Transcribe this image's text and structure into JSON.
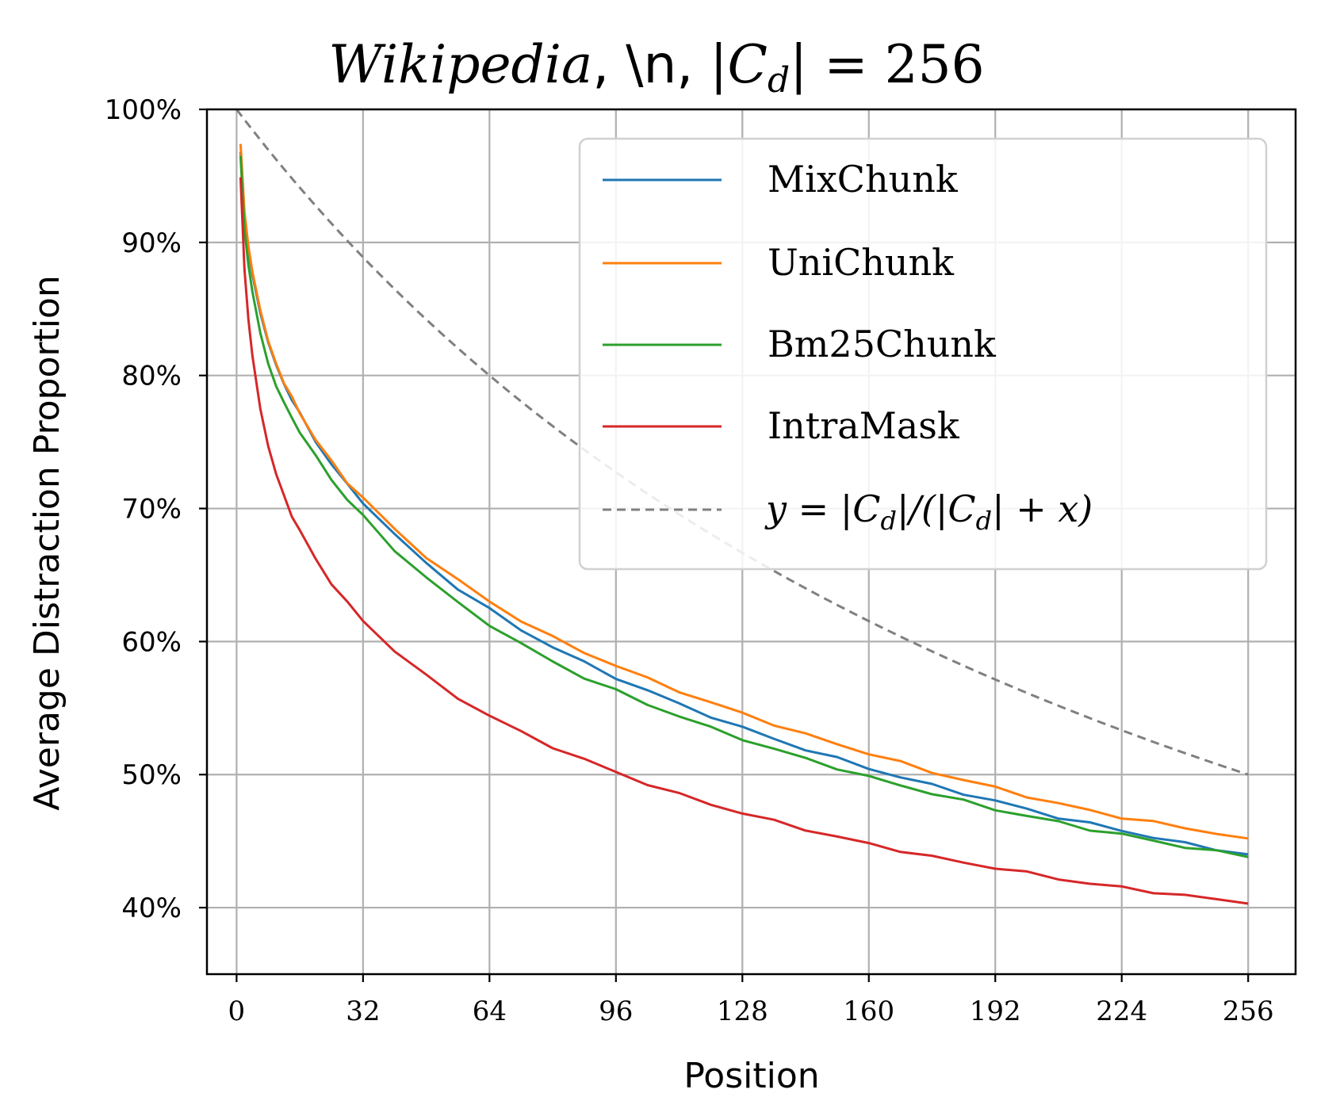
{
  "chart_data": {
    "type": "line",
    "title": "Wikipedia, \\n, |Cd| = 256",
    "title_parts": {
      "italic": "Wikipedia",
      "sep1": ", ",
      "literal": "\\n",
      "sep2": ", ",
      "math": "|C",
      "sub": "d",
      "math_end": "| = 256"
    },
    "xlabel": "Position",
    "ylabel": "Average Distraction Proportion",
    "xlim": [
      -7.5,
      268
    ],
    "ylim": [
      35,
      100
    ],
    "x_ticks": [
      0,
      32,
      64,
      96,
      128,
      160,
      192,
      224,
      256
    ],
    "x_tick_labels": [
      "0",
      "32",
      "64",
      "96",
      "128",
      "160",
      "192",
      "224",
      "256"
    ],
    "y_ticks": [
      40,
      50,
      60,
      70,
      80,
      90,
      100
    ],
    "y_tick_labels": [
      "40%",
      "50%",
      "60%",
      "70%",
      "80%",
      "90%",
      "100%"
    ],
    "grid": true,
    "legend_position": "top-right",
    "x": [
      1,
      2,
      3,
      4,
      6,
      8,
      10,
      12,
      14,
      16,
      20,
      24,
      28,
      32,
      40,
      48,
      56,
      64,
      72,
      80,
      88,
      96,
      104,
      112,
      120,
      128,
      136,
      144,
      152,
      160,
      168,
      176,
      184,
      192,
      200,
      208,
      216,
      224,
      232,
      240,
      248,
      256
    ],
    "series": [
      {
        "name": "MixChunk",
        "color": "#1f77b4",
        "style": "solid",
        "values": [
          96.8,
          92.0,
          89.5,
          87.6,
          84.7,
          82.5,
          80.8,
          79.4,
          78.2,
          77.1,
          75.1,
          73.3,
          71.8,
          70.5,
          68.0,
          65.9,
          64.0,
          62.4,
          60.9,
          59.6,
          58.4,
          57.3,
          56.3,
          55.3,
          54.4,
          53.5,
          52.7,
          51.9,
          51.2,
          50.5,
          49.8,
          49.2,
          48.6,
          48.0,
          47.4,
          46.8,
          46.3,
          45.8,
          45.3,
          44.8,
          44.4,
          44.0
        ]
      },
      {
        "name": "UniChunk",
        "color": "#ff7f0e",
        "style": "solid",
        "values": [
          97.4,
          92.3,
          89.7,
          87.8,
          84.9,
          82.6,
          80.9,
          79.5,
          78.3,
          77.2,
          75.2,
          73.5,
          72.0,
          70.8,
          68.4,
          66.4,
          64.6,
          63.0,
          61.6,
          60.3,
          59.2,
          58.2,
          57.2,
          56.3,
          55.4,
          54.6,
          53.8,
          53.0,
          52.3,
          51.6,
          50.9,
          50.2,
          49.6,
          49.0,
          48.4,
          47.8,
          47.3,
          46.8,
          46.4,
          46.0,
          45.6,
          45.2
        ]
      },
      {
        "name": "Bm25Chunk",
        "color": "#2ca02c",
        "style": "solid",
        "values": [
          96.5,
          91.0,
          88.3,
          86.3,
          83.2,
          80.9,
          79.2,
          77.9,
          76.8,
          75.8,
          73.9,
          72.2,
          70.7,
          69.4,
          66.9,
          64.8,
          62.9,
          61.3,
          59.8,
          58.5,
          57.3,
          56.3,
          55.3,
          54.4,
          53.5,
          52.7,
          51.9,
          51.2,
          50.5,
          49.8,
          49.2,
          48.6,
          48.0,
          47.4,
          46.9,
          46.4,
          45.9,
          45.5,
          45.0,
          44.6,
          44.2,
          43.8
        ]
      },
      {
        "name": "IntraMask",
        "color": "#d62728",
        "style": "solid",
        "values": [
          94.9,
          88.0,
          84.2,
          81.5,
          77.5,
          74.7,
          72.6,
          70.9,
          69.5,
          68.3,
          66.2,
          64.4,
          62.9,
          61.6,
          59.3,
          57.4,
          55.8,
          54.4,
          53.2,
          52.1,
          51.1,
          50.2,
          49.3,
          48.5,
          47.8,
          47.1,
          46.5,
          45.9,
          45.3,
          44.8,
          44.3,
          43.8,
          43.4,
          43.0,
          42.6,
          42.2,
          41.8,
          41.5,
          41.2,
          40.9,
          40.6,
          40.3
        ]
      },
      {
        "name": "y = |Cd|/(|Cd| + x)",
        "color": "#808080",
        "style": "dashed",
        "formula_cd": 256
      }
    ],
    "legend": {
      "entries": [
        {
          "label": "MixChunk"
        },
        {
          "label": "UniChunk"
        },
        {
          "label": "Bm25Chunk"
        },
        {
          "label": "IntraMask"
        },
        {
          "label": "y = |Cd|/(|Cd| + x)"
        }
      ],
      "formula_parts": {
        "lhs": "y = |C",
        "sub": "d",
        "mid": "|/(|C",
        "sub2": "d",
        "rhs": "| + x)"
      }
    }
  }
}
